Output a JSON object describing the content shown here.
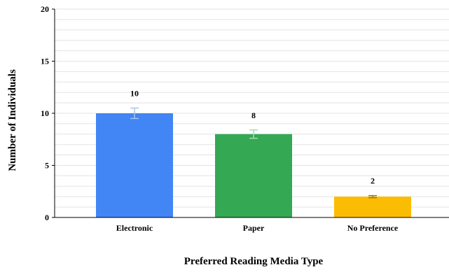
{
  "chart_data": {
    "type": "bar",
    "categories": [
      "Electronic",
      "Paper",
      "No Preference"
    ],
    "values": [
      10,
      8,
      2
    ],
    "error": [
      0.5,
      0.4,
      0.1
    ],
    "data_labels": [
      "10",
      "8",
      "2"
    ],
    "colors": [
      "#4285f4",
      "#34a853",
      "#fbbc04"
    ],
    "error_bar_colors": [
      "#a8c4e8",
      "#a8d8b4",
      "#9a7a1a"
    ],
    "xlabel": "Preferred Reading Media Type",
    "ylabel": "Number of Individuals",
    "ylim": [
      0,
      20
    ],
    "major_ticks": [
      0,
      5,
      10,
      15,
      20
    ],
    "minor_tick_step": 1,
    "tick_labels": [
      "0",
      "5",
      "10",
      "15",
      "20"
    ],
    "grid": true,
    "legend": "none"
  }
}
